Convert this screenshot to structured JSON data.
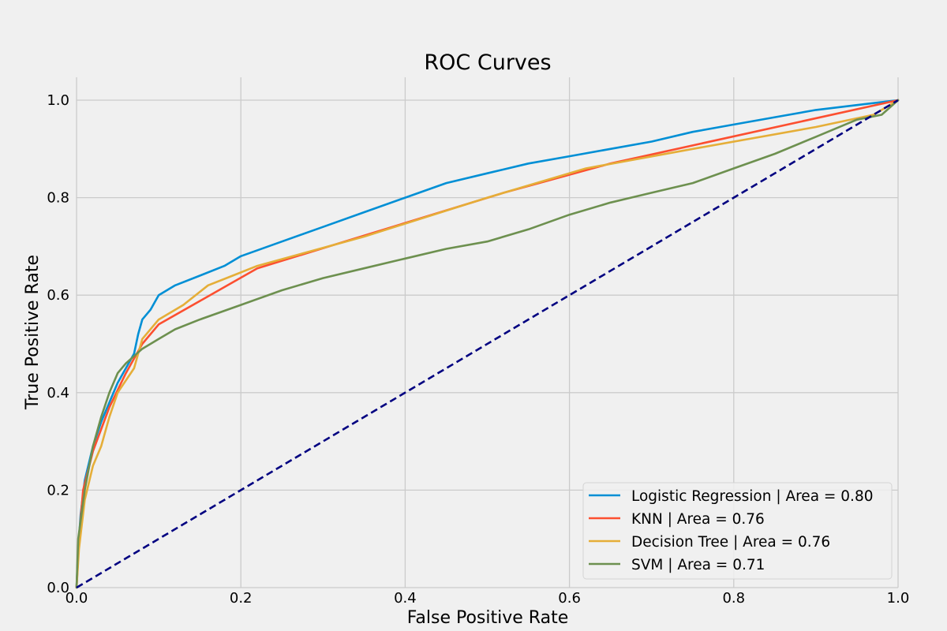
{
  "chart_data": {
    "type": "line",
    "title": "ROC Curves",
    "xlabel": "False Positive Rate",
    "ylabel": "True Positive Rate",
    "xlim": [
      0.0,
      1.0
    ],
    "ylim": [
      0.0,
      1.0
    ],
    "xticks": [
      0.0,
      0.2,
      0.4,
      0.6,
      0.8,
      1.0
    ],
    "yticks": [
      0.0,
      0.2,
      0.4,
      0.6,
      0.8,
      1.0
    ],
    "xtick_labels": [
      "0.0",
      "0.2",
      "0.4",
      "0.6",
      "0.8",
      "1.0"
    ],
    "ytick_labels": [
      "0.0",
      "0.2",
      "0.4",
      "0.6",
      "0.8",
      "1.0"
    ],
    "grid": true,
    "legend_position": "lower-right",
    "series": [
      {
        "name": "Logistic Regression | Area = 0.80",
        "color": "#008fd5",
        "points": [
          [
            0,
            0
          ],
          [
            0.002,
            0.08
          ],
          [
            0.005,
            0.15
          ],
          [
            0.01,
            0.22
          ],
          [
            0.02,
            0.29
          ],
          [
            0.03,
            0.34
          ],
          [
            0.04,
            0.38
          ],
          [
            0.05,
            0.42
          ],
          [
            0.06,
            0.45
          ],
          [
            0.07,
            0.48
          ],
          [
            0.075,
            0.52
          ],
          [
            0.08,
            0.55
          ],
          [
            0.09,
            0.57
          ],
          [
            0.1,
            0.6
          ],
          [
            0.12,
            0.62
          ],
          [
            0.15,
            0.64
          ],
          [
            0.18,
            0.66
          ],
          [
            0.2,
            0.68
          ],
          [
            0.25,
            0.71
          ],
          [
            0.3,
            0.74
          ],
          [
            0.35,
            0.77
          ],
          [
            0.4,
            0.8
          ],
          [
            0.45,
            0.83
          ],
          [
            0.5,
            0.85
          ],
          [
            0.55,
            0.87
          ],
          [
            0.6,
            0.885
          ],
          [
            0.65,
            0.9
          ],
          [
            0.7,
            0.915
          ],
          [
            0.75,
            0.935
          ],
          [
            0.8,
            0.95
          ],
          [
            0.85,
            0.965
          ],
          [
            0.9,
            0.98
          ],
          [
            0.95,
            0.99
          ],
          [
            1.0,
            1.0
          ]
        ]
      },
      {
        "name": "KNN | Area = 0.76",
        "color": "#fc4f30",
        "points": [
          [
            0,
            0
          ],
          [
            0.003,
            0.1
          ],
          [
            0.008,
            0.2
          ],
          [
            0.02,
            0.28
          ],
          [
            0.04,
            0.37
          ],
          [
            0.06,
            0.44
          ],
          [
            0.08,
            0.5
          ],
          [
            0.1,
            0.54
          ],
          [
            0.22,
            0.655
          ],
          [
            0.52,
            0.81
          ],
          [
            0.65,
            0.87
          ],
          [
            1.0,
            1.0
          ]
        ]
      },
      {
        "name": "Decision Tree | Area = 0.76",
        "color": "#e5ae38",
        "points": [
          [
            0,
            0
          ],
          [
            0.003,
            0.08
          ],
          [
            0.01,
            0.18
          ],
          [
            0.02,
            0.25
          ],
          [
            0.03,
            0.29
          ],
          [
            0.04,
            0.35
          ],
          [
            0.05,
            0.4
          ],
          [
            0.07,
            0.45
          ],
          [
            0.08,
            0.51
          ],
          [
            0.1,
            0.55
          ],
          [
            0.13,
            0.58
          ],
          [
            0.16,
            0.62
          ],
          [
            0.19,
            0.64
          ],
          [
            0.22,
            0.66
          ],
          [
            0.35,
            0.72
          ],
          [
            0.5,
            0.8
          ],
          [
            0.62,
            0.86
          ],
          [
            0.75,
            0.9
          ],
          [
            0.9,
            0.945
          ],
          [
            0.97,
            0.97
          ],
          [
            1.0,
            1.0
          ]
        ]
      },
      {
        "name": "SVM | Area = 0.71",
        "color": "#6d904f",
        "points": [
          [
            0,
            0
          ],
          [
            0.002,
            0.1
          ],
          [
            0.01,
            0.2
          ],
          [
            0.02,
            0.29
          ],
          [
            0.03,
            0.35
          ],
          [
            0.04,
            0.4
          ],
          [
            0.05,
            0.44
          ],
          [
            0.06,
            0.46
          ],
          [
            0.08,
            0.49
          ],
          [
            0.1,
            0.51
          ],
          [
            0.12,
            0.53
          ],
          [
            0.15,
            0.55
          ],
          [
            0.2,
            0.58
          ],
          [
            0.25,
            0.61
          ],
          [
            0.3,
            0.635
          ],
          [
            0.35,
            0.655
          ],
          [
            0.4,
            0.675
          ],
          [
            0.45,
            0.695
          ],
          [
            0.5,
            0.71
          ],
          [
            0.55,
            0.735
          ],
          [
            0.6,
            0.765
          ],
          [
            0.65,
            0.79
          ],
          [
            0.7,
            0.81
          ],
          [
            0.75,
            0.83
          ],
          [
            0.8,
            0.86
          ],
          [
            0.85,
            0.89
          ],
          [
            0.9,
            0.925
          ],
          [
            0.95,
            0.96
          ],
          [
            0.98,
            0.97
          ],
          [
            1.0,
            1.0
          ]
        ]
      }
    ],
    "reference_line": {
      "color": "#000080",
      "style": "dashed",
      "points": [
        [
          0,
          0
        ],
        [
          1,
          1
        ]
      ]
    }
  }
}
